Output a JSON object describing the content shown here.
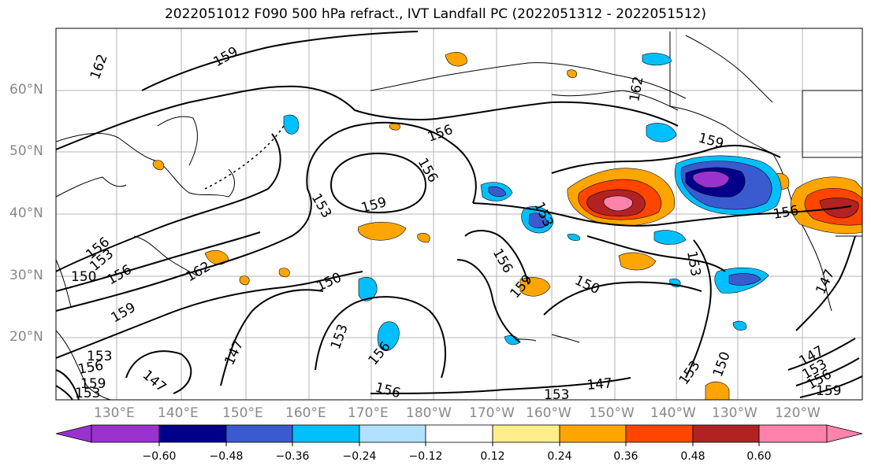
{
  "title": "2022051012 F090 500 hPa refract., IVT Landfall PC (2022051312 - 2022051512)",
  "lat_labels": [
    "60°N",
    "50°N",
    "40°N",
    "30°N",
    "20°N"
  ],
  "lon_labels": [
    "130°E",
    "140°E",
    "150°E",
    "160°E",
    "170°E",
    "180°W",
    "170°W",
    "160°W",
    "150°W",
    "140°W",
    "130°W",
    "120°W"
  ],
  "contour_labels": [
    "162",
    "159",
    "156",
    "153",
    "150",
    "147"
  ],
  "colorbar": {
    "ticks": [
      "−0.60",
      "−0.48",
      "−0.36",
      "−0.24",
      "−0.12",
      "0.12",
      "0.24",
      "0.36",
      "0.48",
      "0.60"
    ],
    "colors": [
      "#9a32cd",
      "#00008b",
      "#3a5bd0",
      "#00bfff",
      "#b0e2ff",
      "#ffffff",
      "#ffec8b",
      "#ffa500",
      "#ff4500",
      "#b22222",
      "#ff82ab"
    ]
  }
}
